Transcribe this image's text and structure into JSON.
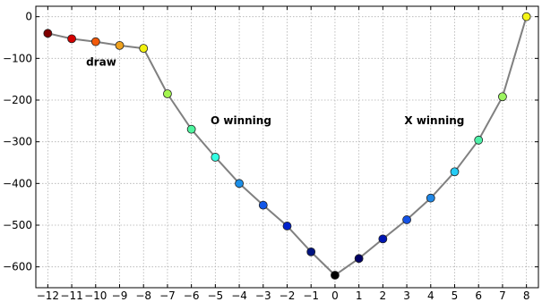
{
  "chart_data": {
    "type": "line",
    "title": "",
    "xlabel": "",
    "ylabel": "",
    "xlim": [
      -12.5,
      8.5
    ],
    "ylim": [
      -650,
      25
    ],
    "grid": true,
    "xticks": [
      -12,
      -11,
      -10,
      -9,
      -8,
      -7,
      -6,
      -5,
      -4,
      -3,
      -2,
      -1,
      0,
      1,
      2,
      3,
      4,
      5,
      6,
      7,
      8
    ],
    "xtick_labels": [
      "−12",
      "−11",
      "−10",
      "−9",
      "−8",
      "−7",
      "−6",
      "−5",
      "−4",
      "−3",
      "−2",
      "−1",
      "0",
      "1",
      "2",
      "3",
      "4",
      "5",
      "6",
      "7",
      "8"
    ],
    "yticks": [
      0,
      -100,
      -200,
      -300,
      -400,
      -500,
      -600
    ],
    "ytick_labels": [
      "0",
      "−100",
      "−200",
      "−300",
      "−400",
      "−500",
      "−600"
    ],
    "line_color": "#808080",
    "series": [
      {
        "x": [
          -12,
          -11,
          -10,
          -9,
          -8,
          -7,
          -6,
          -5,
          -4,
          -3,
          -2,
          -1,
          0,
          1,
          2,
          3,
          4,
          5,
          6,
          7,
          8
        ],
        "y": [
          -40,
          -53,
          -60,
          -69,
          -76,
          -185,
          -270,
          -337,
          -400,
          -452,
          -502,
          -564,
          -620,
          -580,
          -533,
          -487,
          -435,
          -372,
          -296,
          -192,
          0
        ],
        "marker_colors": [
          "#800000",
          "#d40000",
          "#f25a0a",
          "#f0a21e",
          "#f2f20f",
          "#a3f54f",
          "#4ef59e",
          "#33ffe3",
          "#1c8fe8",
          "#1257e8",
          "#0022cc",
          "#001380",
          "#000000",
          "#000066",
          "#0016b3",
          "#1452e6",
          "#1f87e6",
          "#25ccf5",
          "#4ef0a8",
          "#9cf560",
          "#f5f518"
        ]
      }
    ],
    "annotations": [
      {
        "text": "draw",
        "x": -10.4,
        "y": -118
      },
      {
        "text": "O winning",
        "x": -5.2,
        "y": -258
      },
      {
        "text": "X winning",
        "x": 2.9,
        "y": -258
      }
    ]
  }
}
